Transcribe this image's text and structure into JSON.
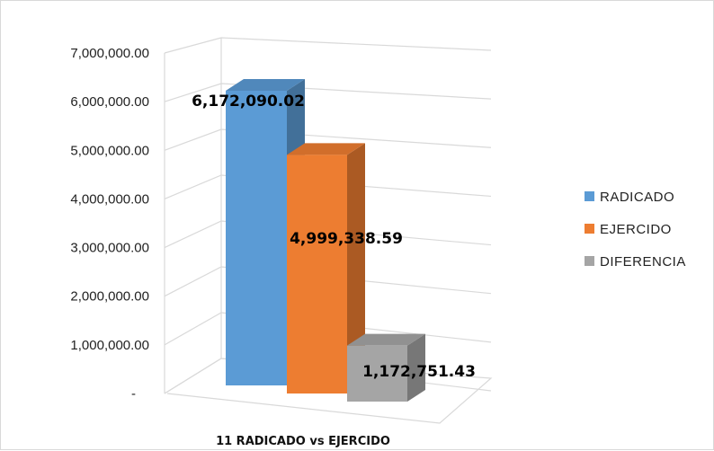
{
  "chart_data": {
    "type": "bar",
    "title": "",
    "xlabel": "",
    "ylabel": "",
    "categories": [
      "11 RADICADO vs EJERCIDO"
    ],
    "series": [
      {
        "name": "RADICADO",
        "values": [
          6172090.02
        ],
        "color": "#5b9bd5",
        "label": "6,172,090.02"
      },
      {
        "name": "EJERCIDO",
        "values": [
          4999338.59
        ],
        "color": "#ed7d31",
        "label": "4,999,338.59"
      },
      {
        "name": "DIFERENCIA",
        "values": [
          1172751.43
        ],
        "color": "#a5a5a5",
        "label": "1,172,751.43"
      }
    ],
    "ylim": [
      0,
      7000000
    ],
    "y_ticks": [
      {
        "value": 0,
        "label": "-"
      },
      {
        "value": 1000000,
        "label": "1,000,000.00"
      },
      {
        "value": 2000000,
        "label": "2,000,000.00"
      },
      {
        "value": 3000000,
        "label": "3,000,000.00"
      },
      {
        "value": 4000000,
        "label": "4,000,000.00"
      },
      {
        "value": 5000000,
        "label": "5,000,000.00"
      },
      {
        "value": 6000000,
        "label": "6,000,000.00"
      },
      {
        "value": 7000000,
        "label": "7,000,000.00"
      }
    ],
    "grid": true,
    "style": "3d-clustered-column",
    "legend_position": "right"
  }
}
